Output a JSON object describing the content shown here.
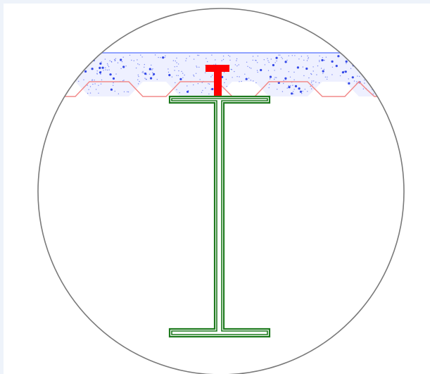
{
  "diagram": {
    "subject": "composite-beam-section",
    "components": [
      {
        "key": "detail-circle",
        "kind": "outline"
      },
      {
        "key": "concrete-slab",
        "kind": "concrete fill with aggregate dots"
      },
      {
        "key": "profiled-deck",
        "kind": "trapezoidal metal decking"
      },
      {
        "key": "shear-connector",
        "kind": "headed stud"
      },
      {
        "key": "steel-i-beam",
        "kind": "I-section"
      }
    ],
    "colors": {
      "background": "#eef3fa",
      "panel": "#ffffff",
      "circle": "#7a7a7a",
      "slab_top": "#6f86ff",
      "aggregate": "#1f36e6",
      "deck": "#f28a8a",
      "stud": "#ff0000",
      "beam": "#1e7a1e"
    }
  }
}
